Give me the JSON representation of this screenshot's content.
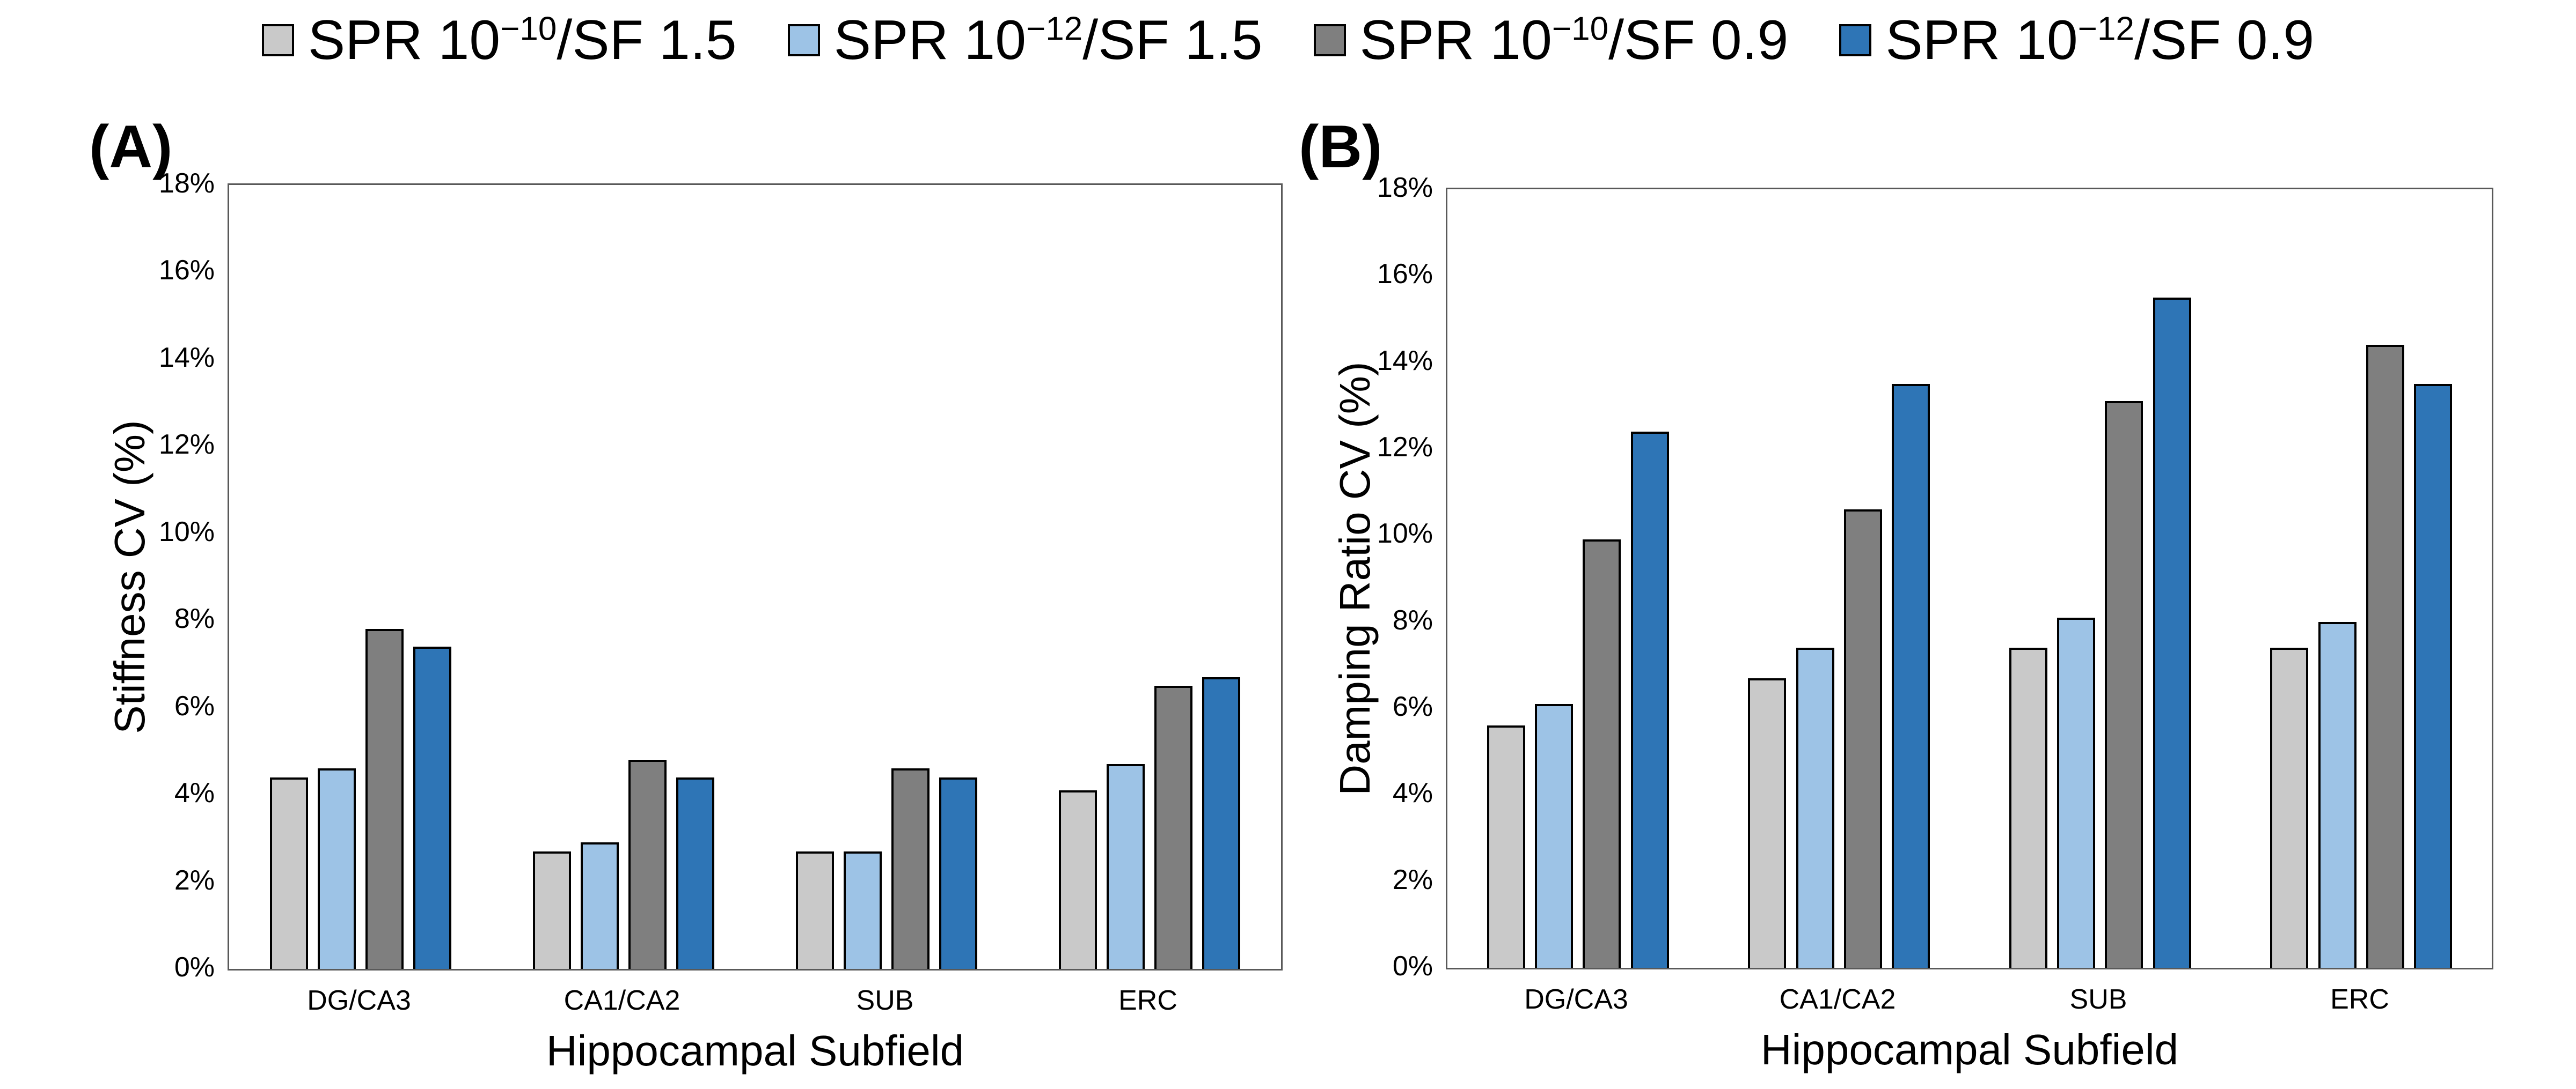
{
  "colors": {
    "light_gray": "#C9C9C9",
    "light_blue": "#9DC3E6",
    "dark_gray": "#7F7F7F",
    "blue": "#2E75B6",
    "bar_border": "#000000",
    "plot_border": "#595959"
  },
  "legend": {
    "items": [
      {
        "color_key": "light_gray",
        "prefix": "SPR 10",
        "exponent": "−10",
        "suffix": "/SF 1.5"
      },
      {
        "color_key": "light_blue",
        "prefix": "SPR 10",
        "exponent": "−12",
        "suffix": "/SF 1.5"
      },
      {
        "color_key": "dark_gray",
        "prefix": "SPR 10",
        "exponent": "−10",
        "suffix": "/SF 0.9"
      },
      {
        "color_key": "blue",
        "prefix": "SPR 10",
        "exponent": "−12",
        "suffix": "/SF 0.9"
      }
    ]
  },
  "chart_data": [
    {
      "type": "bar",
      "panel": "(A)",
      "title": "",
      "ylabel": "Stiffness CV (%)",
      "xlabel": "Hippocampal Subfield",
      "categories": [
        "DG/CA3",
        "CA1/CA2",
        "SUB",
        "ERC"
      ],
      "ylim": [
        0,
        18
      ],
      "ytick_step": 2,
      "ytick_labels": [
        "0%",
        "2%",
        "4%",
        "6%",
        "8%",
        "10%",
        "12%",
        "14%",
        "16%",
        "18%"
      ],
      "grid": false,
      "legend_position": "top",
      "series": [
        {
          "name": "SPR 1e-10 / SF 1.5",
          "color_key": "light_gray",
          "values": [
            4.4,
            2.7,
            2.7,
            4.1
          ]
        },
        {
          "name": "SPR 1e-12 / SF 1.5",
          "color_key": "light_blue",
          "values": [
            4.6,
            2.9,
            2.7,
            4.7
          ]
        },
        {
          "name": "SPR 1e-10 / SF 0.9",
          "color_key": "dark_gray",
          "values": [
            7.8,
            4.8,
            4.6,
            6.5
          ]
        },
        {
          "name": "SPR 1e-12 / SF 0.9",
          "color_key": "blue",
          "values": [
            7.4,
            4.4,
            4.4,
            6.7
          ]
        }
      ]
    },
    {
      "type": "bar",
      "panel": "(B)",
      "title": "",
      "ylabel": "Damping Ratio CV (%)",
      "xlabel": "Hippocampal Subfield",
      "categories": [
        "DG/CA3",
        "CA1/CA2",
        "SUB",
        "ERC"
      ],
      "ylim": [
        0,
        18
      ],
      "ytick_step": 2,
      "ytick_labels": [
        "0%",
        "2%",
        "4%",
        "6%",
        "8%",
        "10%",
        "12%",
        "14%",
        "16%",
        "18%"
      ],
      "grid": false,
      "legend_position": "top",
      "series": [
        {
          "name": "SPR 1e-10 / SF 1.5",
          "color_key": "light_gray",
          "values": [
            5.6,
            6.7,
            7.4,
            7.4
          ]
        },
        {
          "name": "SPR 1e-12 / SF 1.5",
          "color_key": "light_blue",
          "values": [
            6.1,
            7.4,
            8.1,
            8.0
          ]
        },
        {
          "name": "SPR 1e-10 / SF 0.9",
          "color_key": "dark_gray",
          "values": [
            9.9,
            10.6,
            13.1,
            14.4
          ]
        },
        {
          "name": "SPR 1e-12 / SF 0.9",
          "color_key": "blue",
          "values": [
            12.4,
            13.5,
            15.5,
            13.5
          ]
        }
      ]
    }
  ]
}
